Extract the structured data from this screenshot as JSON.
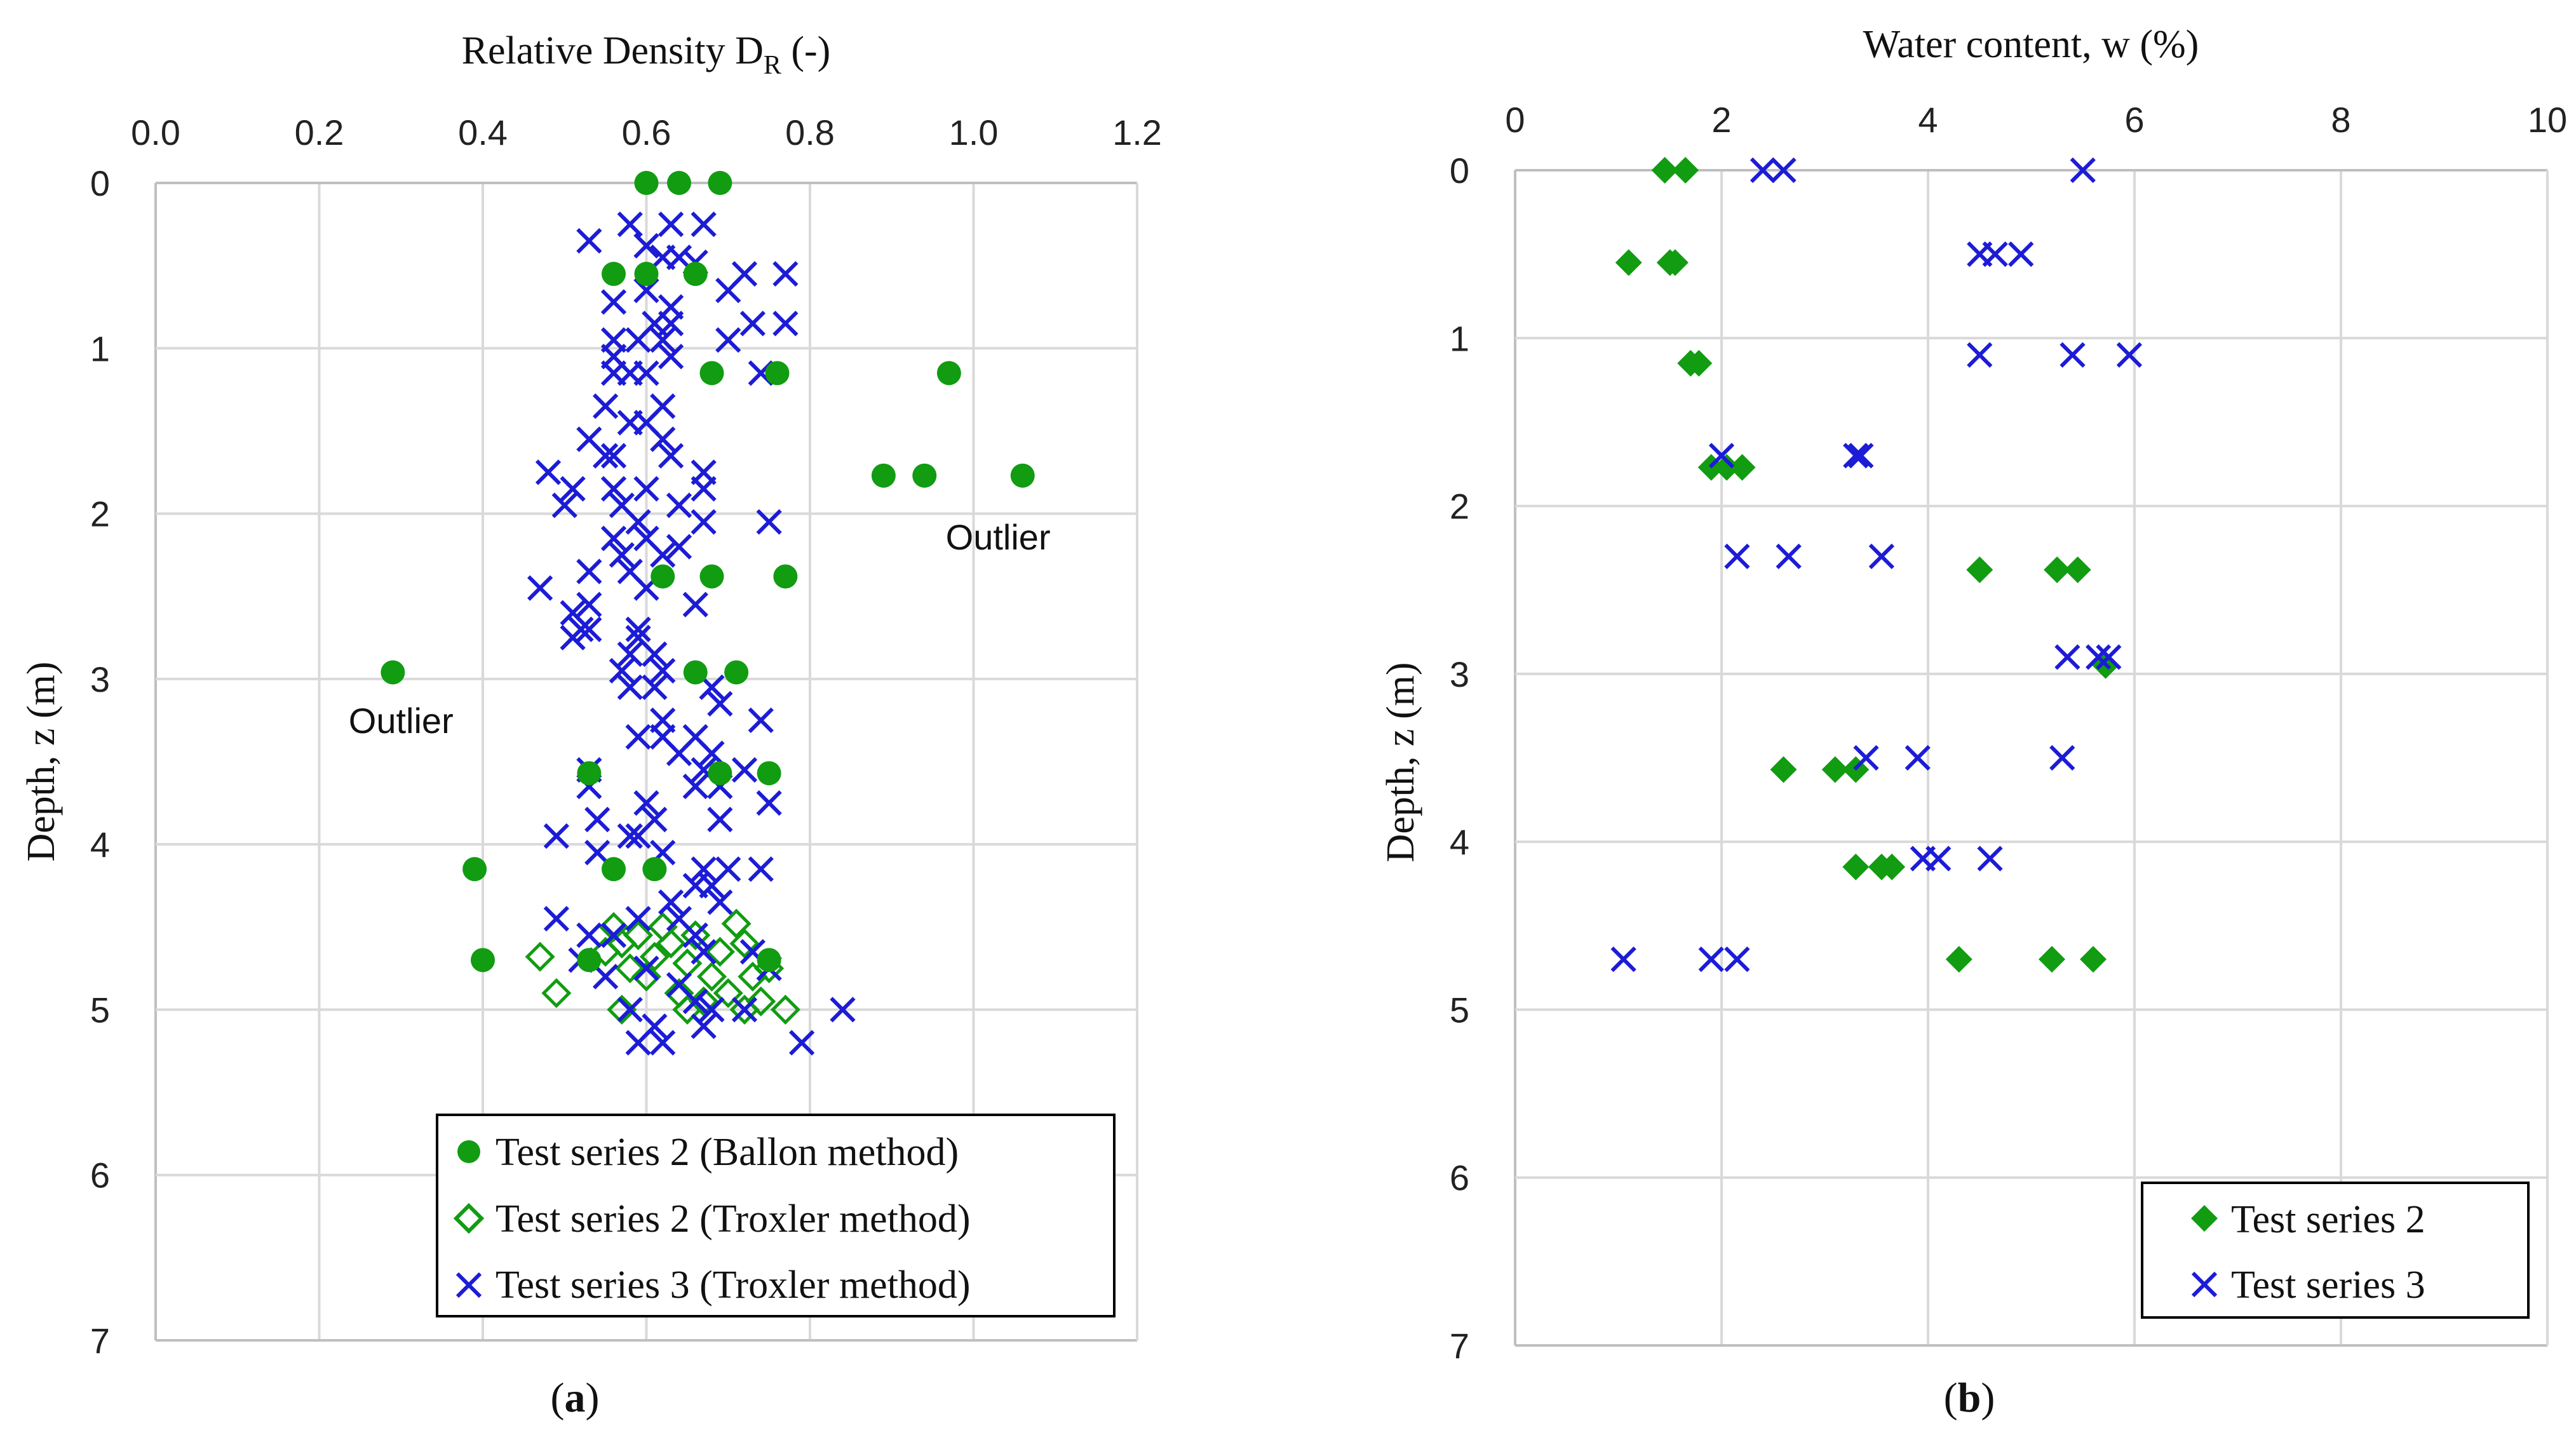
{
  "chart_data": [
    {
      "type": "scatter",
      "panel_label": "(a)",
      "panel_label_open": "(",
      "panel_label_letter": "a",
      "panel_label_close": ")",
      "xlabel_main": "Relative Density D",
      "xlabel_sub": "R",
      "xlabel_tail": " (-)",
      "ylabel": "Depth, z (m)",
      "xlim": [
        0,
        1.2
      ],
      "ylim": [
        0,
        7
      ],
      "x_axis_position": "top",
      "y_axis_inverted": true,
      "grid": true,
      "xticks": [
        "0.0",
        "0.2",
        "0.4",
        "0.6",
        "0.8",
        "1.0",
        "1.2"
      ],
      "yticks": [
        "0",
        "1",
        "2",
        "3",
        "4",
        "5",
        "6",
        "7"
      ],
      "legend_position": "bottom-right",
      "annotations": [
        {
          "text": "Outlier",
          "x": 1.03,
          "y": 2.14
        },
        {
          "text": "Outlier",
          "x": 0.3,
          "y": 3.25
        }
      ],
      "series": [
        {
          "name": "Test series 2 (Ballon method)",
          "marker": "filled-circle",
          "color": "#119c11",
          "points": [
            [
              0.6,
              0
            ],
            [
              0.64,
              0
            ],
            [
              0.69,
              0
            ],
            [
              0.56,
              0.55
            ],
            [
              0.6,
              0.55
            ],
            [
              0.66,
              0.55
            ],
            [
              0.68,
              1.15
            ],
            [
              0.76,
              1.15
            ],
            [
              0.97,
              1.15
            ],
            [
              0.89,
              1.77
            ],
            [
              0.94,
              1.77
            ],
            [
              1.06,
              1.77
            ],
            [
              0.62,
              2.38
            ],
            [
              0.68,
              2.38
            ],
            [
              0.77,
              2.38
            ],
            [
              0.29,
              2.96
            ],
            [
              0.66,
              2.96
            ],
            [
              0.71,
              2.96
            ],
            [
              0.53,
              3.57
            ],
            [
              0.69,
              3.57
            ],
            [
              0.75,
              3.57
            ],
            [
              0.39,
              4.15
            ],
            [
              0.56,
              4.15
            ],
            [
              0.61,
              4.15
            ],
            [
              0.4,
              4.7
            ],
            [
              0.53,
              4.7
            ],
            [
              0.75,
              4.7
            ]
          ]
        },
        {
          "name": "Test series 2 (Troxler method)",
          "marker": "open-diamond",
          "color": "#119c11",
          "points": [
            [
              0.47,
              4.68
            ],
            [
              0.49,
              4.9
            ],
            [
              0.55,
              4.65
            ],
            [
              0.56,
              4.5
            ],
            [
              0.57,
              4.6
            ],
            [
              0.58,
              4.75
            ],
            [
              0.59,
              4.55
            ],
            [
              0.6,
              4.8
            ],
            [
              0.61,
              4.68
            ],
            [
              0.62,
              4.5
            ],
            [
              0.63,
              4.6
            ],
            [
              0.64,
              4.9
            ],
            [
              0.65,
              4.72
            ],
            [
              0.66,
              4.55
            ],
            [
              0.67,
              4.95
            ],
            [
              0.68,
              4.8
            ],
            [
              0.69,
              4.65
            ],
            [
              0.7,
              4.9
            ],
            [
              0.71,
              4.48
            ],
            [
              0.72,
              4.6
            ],
            [
              0.73,
              4.8
            ],
            [
              0.74,
              4.95
            ],
            [
              0.75,
              4.75
            ],
            [
              0.57,
              5.0
            ],
            [
              0.65,
              5.0
            ],
            [
              0.72,
              5.0
            ],
            [
              0.77,
              5.0
            ]
          ]
        },
        {
          "name": "Test series 3 (Troxler method)",
          "marker": "x-cross",
          "color": "#1c1cd6",
          "points": [
            [
              0.53,
              0.35
            ],
            [
              0.58,
              0.25
            ],
            [
              0.6,
              0.38
            ],
            [
              0.63,
              0.25
            ],
            [
              0.67,
              0.25
            ],
            [
              0.62,
              0.45
            ],
            [
              0.64,
              0.45
            ],
            [
              0.66,
              0.48
            ],
            [
              0.72,
              0.55
            ],
            [
              0.77,
              0.55
            ],
            [
              0.6,
              0.65
            ],
            [
              0.56,
              0.72
            ],
            [
              0.7,
              0.65
            ],
            [
              0.63,
              0.75
            ],
            [
              0.61,
              0.85
            ],
            [
              0.63,
              0.85
            ],
            [
              0.73,
              0.85
            ],
            [
              0.77,
              0.85
            ],
            [
              0.59,
              0.95
            ],
            [
              0.56,
              0.95
            ],
            [
              0.62,
              0.95
            ],
            [
              0.7,
              0.95
            ],
            [
              0.56,
              1.05
            ],
            [
              0.63,
              1.05
            ],
            [
              0.56,
              1.15
            ],
            [
              0.58,
              1.15
            ],
            [
              0.6,
              1.15
            ],
            [
              0.74,
              1.15
            ],
            [
              0.62,
              1.35
            ],
            [
              0.55,
              1.35
            ],
            [
              0.58,
              1.45
            ],
            [
              0.6,
              1.45
            ],
            [
              0.53,
              1.55
            ],
            [
              0.62,
              1.55
            ],
            [
              0.55,
              1.65
            ],
            [
              0.56,
              1.65
            ],
            [
              0.63,
              1.65
            ],
            [
              0.48,
              1.75
            ],
            [
              0.67,
              1.75
            ],
            [
              0.51,
              1.85
            ],
            [
              0.56,
              1.85
            ],
            [
              0.6,
              1.85
            ],
            [
              0.67,
              1.85
            ],
            [
              0.5,
              1.95
            ],
            [
              0.57,
              1.95
            ],
            [
              0.64,
              1.95
            ],
            [
              0.59,
              2.05
            ],
            [
              0.56,
              2.15
            ],
            [
              0.6,
              2.15
            ],
            [
              0.67,
              2.05
            ],
            [
              0.75,
              2.05
            ],
            [
              0.57,
              2.25
            ],
            [
              0.62,
              2.25
            ],
            [
              0.64,
              2.2
            ],
            [
              0.53,
              2.35
            ],
            [
              0.58,
              2.35
            ],
            [
              0.6,
              2.45
            ],
            [
              0.47,
              2.45
            ],
            [
              0.53,
              2.55
            ],
            [
              0.51,
              2.6
            ],
            [
              0.52,
              2.7
            ],
            [
              0.53,
              2.7
            ],
            [
              0.51,
              2.75
            ],
            [
              0.59,
              2.75
            ],
            [
              0.66,
              2.55
            ],
            [
              0.59,
              2.7
            ],
            [
              0.58,
              2.85
            ],
            [
              0.61,
              2.85
            ],
            [
              0.57,
              2.95
            ],
            [
              0.62,
              2.95
            ],
            [
              0.58,
              3.05
            ],
            [
              0.61,
              3.05
            ],
            [
              0.68,
              3.05
            ],
            [
              0.69,
              3.15
            ],
            [
              0.62,
              3.25
            ],
            [
              0.74,
              3.25
            ],
            [
              0.59,
              3.35
            ],
            [
              0.62,
              3.35
            ],
            [
              0.66,
              3.35
            ],
            [
              0.64,
              3.45
            ],
            [
              0.68,
              3.45
            ],
            [
              0.53,
              3.55
            ],
            [
              0.67,
              3.55
            ],
            [
              0.72,
              3.55
            ],
            [
              0.53,
              3.65
            ],
            [
              0.66,
              3.65
            ],
            [
              0.69,
              3.65
            ],
            [
              0.75,
              3.75
            ],
            [
              0.6,
              3.75
            ],
            [
              0.54,
              3.85
            ],
            [
              0.61,
              3.85
            ],
            [
              0.69,
              3.85
            ],
            [
              0.58,
              3.95
            ],
            [
              0.59,
              3.95
            ],
            [
              0.49,
              3.95
            ],
            [
              0.54,
              4.05
            ],
            [
              0.62,
              4.05
            ],
            [
              0.67,
              4.15
            ],
            [
              0.74,
              4.15
            ],
            [
              0.7,
              4.15
            ],
            [
              0.66,
              4.25
            ],
            [
              0.68,
              4.25
            ],
            [
              0.63,
              4.35
            ],
            [
              0.69,
              4.35
            ],
            [
              0.59,
              4.45
            ],
            [
              0.64,
              4.45
            ],
            [
              0.49,
              4.45
            ],
            [
              0.53,
              4.55
            ],
            [
              0.56,
              4.55
            ],
            [
              0.66,
              4.55
            ],
            [
              0.67,
              4.65
            ],
            [
              0.73,
              4.65
            ],
            [
              0.52,
              4.7
            ],
            [
              0.55,
              4.8
            ],
            [
              0.6,
              4.75
            ],
            [
              0.64,
              4.85
            ],
            [
              0.66,
              4.95
            ],
            [
              0.68,
              5.0
            ],
            [
              0.72,
              5.0
            ],
            [
              0.75,
              4.75
            ],
            [
              0.84,
              5.0
            ],
            [
              0.58,
              5.0
            ],
            [
              0.61,
              5.1
            ],
            [
              0.67,
              5.1
            ],
            [
              0.59,
              5.2
            ],
            [
              0.62,
              5.2
            ],
            [
              0.79,
              5.2
            ]
          ]
        }
      ]
    },
    {
      "type": "scatter",
      "panel_label": "(b)",
      "panel_label_open": "(",
      "panel_label_letter": "b",
      "panel_label_close": ")",
      "xlabel": "Water content, w (%)",
      "ylabel": "Depth, z (m)",
      "xlim": [
        0,
        10
      ],
      "ylim": [
        0,
        7
      ],
      "x_axis_position": "top",
      "y_axis_inverted": true,
      "grid": true,
      "xticks": [
        "0",
        "2",
        "4",
        "6",
        "8",
        "10"
      ],
      "yticks": [
        "0",
        "1",
        "2",
        "3",
        "4",
        "5",
        "6",
        "7"
      ],
      "legend_position": "bottom-right",
      "series": [
        {
          "name": "Test series 2",
          "marker": "filled-diamond",
          "color": "#119c11",
          "points": [
            [
              1.45,
              0
            ],
            [
              1.65,
              0
            ],
            [
              1.1,
              0.55
            ],
            [
              1.5,
              0.55
            ],
            [
              1.55,
              0.55
            ],
            [
              1.7,
              1.15
            ],
            [
              1.78,
              1.15
            ],
            [
              1.9,
              1.77
            ],
            [
              2.05,
              1.77
            ],
            [
              2.2,
              1.77
            ],
            [
              4.5,
              2.38
            ],
            [
              5.25,
              2.38
            ],
            [
              5.45,
              2.38
            ],
            [
              5.72,
              2.95
            ],
            [
              2.6,
              3.57
            ],
            [
              3.1,
              3.57
            ],
            [
              3.3,
              3.57
            ],
            [
              3.3,
              4.15
            ],
            [
              3.55,
              4.15
            ],
            [
              3.65,
              4.15
            ],
            [
              4.3,
              4.7
            ],
            [
              5.2,
              4.7
            ],
            [
              5.6,
              4.7
            ]
          ]
        },
        {
          "name": "Test series 3",
          "marker": "x-cross",
          "color": "#1c1cd6",
          "points": [
            [
              2.4,
              0
            ],
            [
              2.6,
              0
            ],
            [
              5.5,
              0
            ],
            [
              4.5,
              0.5
            ],
            [
              4.65,
              0.5
            ],
            [
              4.9,
              0.5
            ],
            [
              4.5,
              1.1
            ],
            [
              5.4,
              1.1
            ],
            [
              5.95,
              1.1
            ],
            [
              2.0,
              1.7
            ],
            [
              3.3,
              1.7
            ],
            [
              3.35,
              1.7
            ],
            [
              2.15,
              2.3
            ],
            [
              2.65,
              2.3
            ],
            [
              3.55,
              2.3
            ],
            [
              5.35,
              2.9
            ],
            [
              5.65,
              2.9
            ],
            [
              5.75,
              2.9
            ],
            [
              3.4,
              3.5
            ],
            [
              3.9,
              3.5
            ],
            [
              5.3,
              3.5
            ],
            [
              3.95,
              4.1
            ],
            [
              4.1,
              4.1
            ],
            [
              4.6,
              4.1
            ],
            [
              1.05,
              4.7
            ],
            [
              1.9,
              4.7
            ],
            [
              2.15,
              4.7
            ]
          ]
        }
      ]
    }
  ]
}
